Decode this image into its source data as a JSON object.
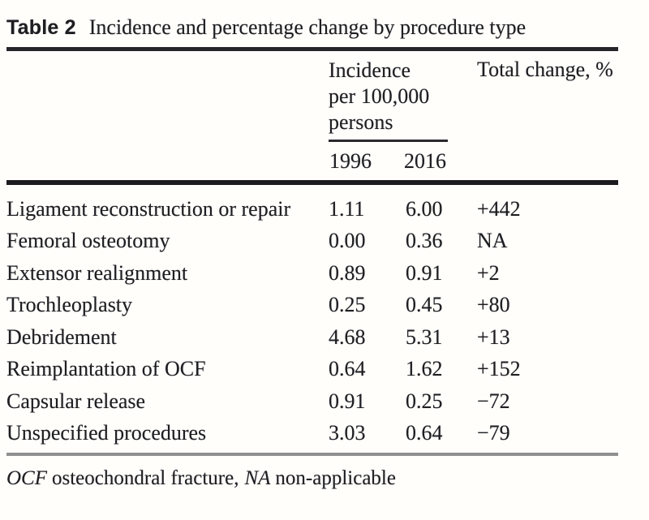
{
  "page": {
    "background": "#fffefb",
    "text_color": "#1e1e22",
    "rule_color_top": "#26262a",
    "rule_color_mid": "#1c1c20",
    "rule_color_bottom": "#8f8f8f"
  },
  "caption": {
    "label": "Table 2",
    "text": "Incidence and percentage change by procedure type"
  },
  "table": {
    "group_header": "Incidence\nper 100,000\npersons",
    "total_change_header": "Total change, %",
    "year_1996": "1996",
    "year_2016": "2016",
    "rows": [
      {
        "procedure": "Ligament reconstruction or repair",
        "y1996": "1.11",
        "y2016": "6.00",
        "change": "+442"
      },
      {
        "procedure": "Femoral osteotomy",
        "y1996": "0.00",
        "y2016": "0.36",
        "change": "NA"
      },
      {
        "procedure": "Extensor realignment",
        "y1996": "0.89",
        "y2016": "0.91",
        "change": "+2"
      },
      {
        "procedure": "Trochleoplasty",
        "y1996": "0.25",
        "y2016": "0.45",
        "change": "+80"
      },
      {
        "procedure": "Debridement",
        "y1996": "4.68",
        "y2016": "5.31",
        "change": "+13"
      },
      {
        "procedure": "Reimplantation of OCF",
        "y1996": "0.64",
        "y2016": "1.62",
        "change": "+152"
      },
      {
        "procedure": "Capsular release",
        "y1996": "0.91",
        "y2016": "0.25",
        "change": "−72"
      },
      {
        "procedure": "Unspecified procedures",
        "y1996": "3.03",
        "y2016": "0.64",
        "change": "−79"
      }
    ]
  },
  "footnote": {
    "abbr1": "OCF",
    "def1": "osteochondral fracture,",
    "abbr2": "NA",
    "def2": "non-applicable"
  }
}
